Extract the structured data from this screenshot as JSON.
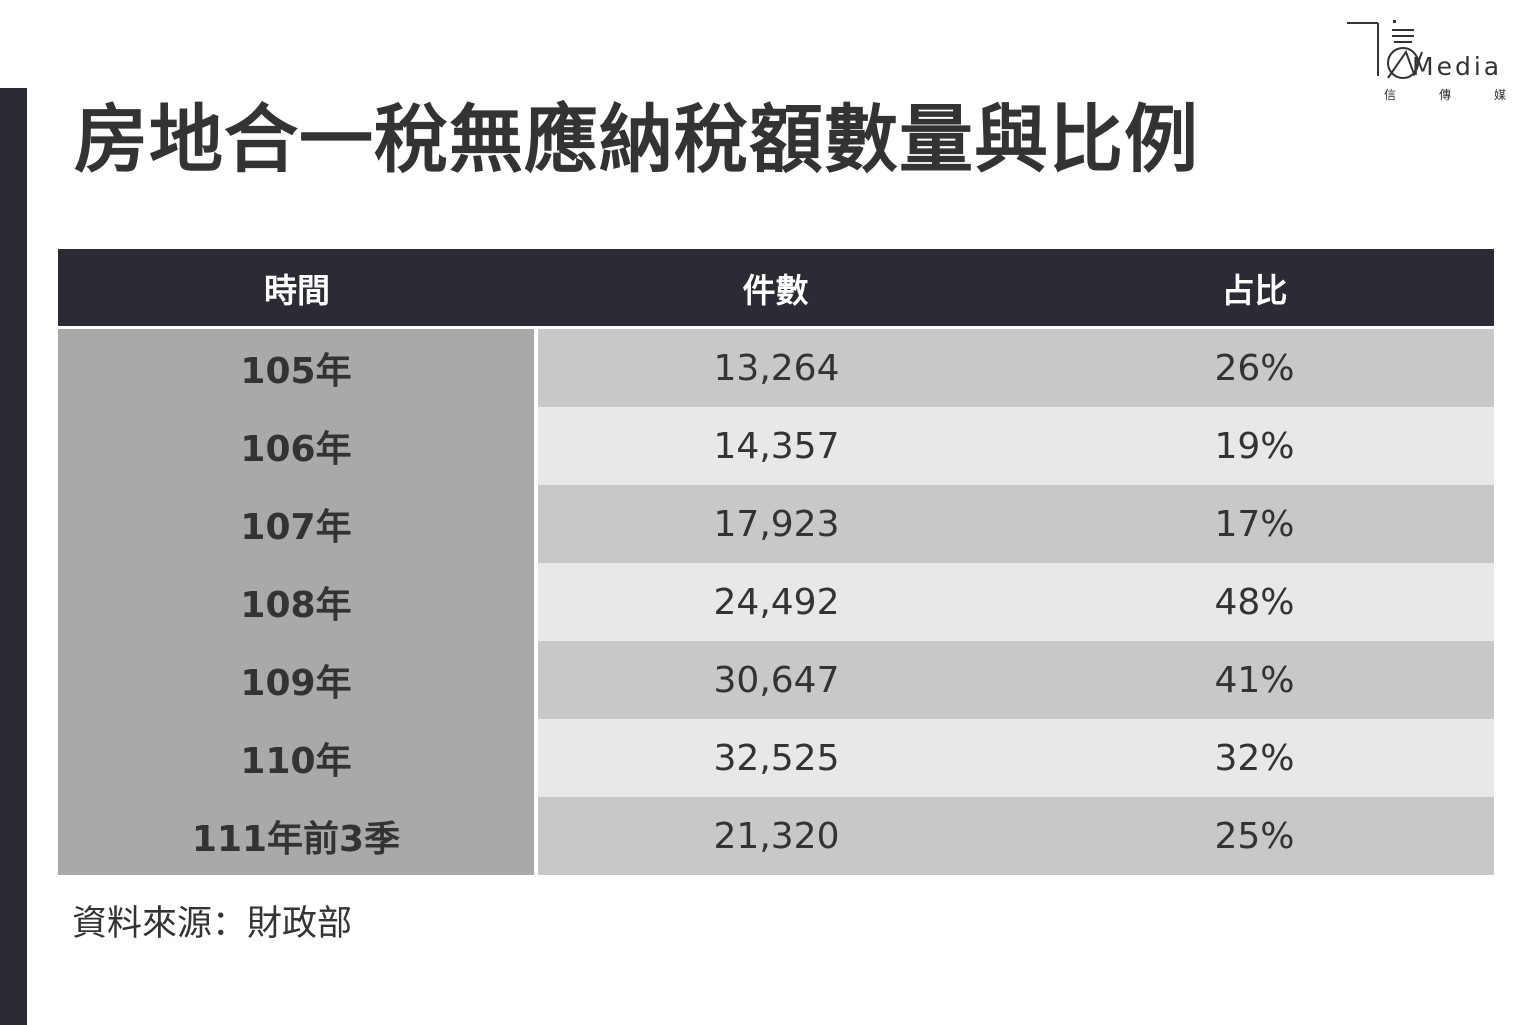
{
  "title": "房地合一稅無應納稅額數量與比例",
  "logo": {
    "word": "Media",
    "sub": [
      "信",
      "傳",
      "媒"
    ]
  },
  "colors": {
    "header_bg": "#2d2a36",
    "year_col_bg": "#a9a8ab",
    "row_dark": "#c8c8c8",
    "row_light": "#e8e8e8"
  },
  "chart_data": {
    "type": "table",
    "columns": [
      "時間",
      "件數",
      "占比"
    ],
    "rows": [
      {
        "period": "105年",
        "count": "13,264",
        "share": "26%"
      },
      {
        "period": "106年",
        "count": "14,357",
        "share": "19%"
      },
      {
        "period": "107年",
        "count": "17,923",
        "share": "17%"
      },
      {
        "period": "108年",
        "count": "24,492",
        "share": "48%"
      },
      {
        "period": "109年",
        "count": "30,647",
        "share": "41%"
      },
      {
        "period": "110年",
        "count": "32,525",
        "share": "32%"
      },
      {
        "period": "111年前3季",
        "count": "21,320",
        "share": "25%"
      }
    ]
  },
  "source": "資料來源：財政部"
}
